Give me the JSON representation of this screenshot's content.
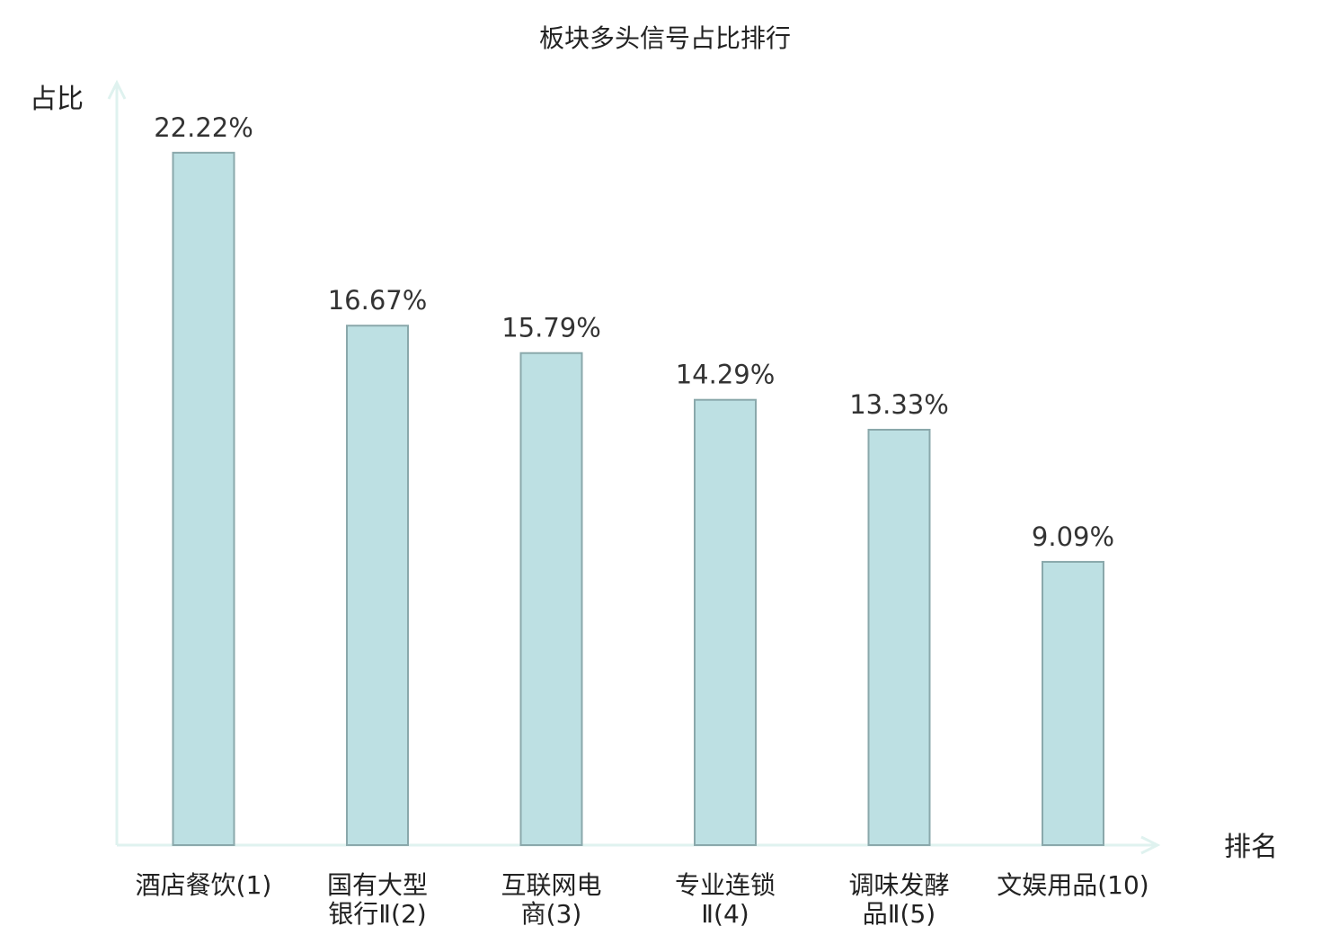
{
  "chart_data": {
    "type": "bar",
    "title": "板块多头信号占比排行",
    "xlabel": "排名",
    "ylabel": "占比",
    "ylim": [
      0,
      25
    ],
    "grid": false,
    "legend": "none",
    "categories": [
      [
        "酒店餐饮(1)"
      ],
      [
        "国有大型",
        "银行Ⅱ(2)"
      ],
      [
        "互联网电",
        "商(3)"
      ],
      [
        "专业连锁",
        "Ⅱ(4)"
      ],
      [
        "调味发酵",
        "品Ⅱ(5)"
      ],
      [
        "文娱用品(10)"
      ]
    ],
    "values": [
      22.22,
      16.67,
      15.79,
      14.29,
      13.33,
      9.09
    ],
    "value_labels": [
      "22.22%",
      "16.67%",
      "15.79%",
      "14.29%",
      "13.33%",
      "9.09%"
    ],
    "highlight_index": 5,
    "colors": {
      "bar_fill": "#bde0e3",
      "bar_stroke": "#8aa8ab",
      "axis": "#dff2ef",
      "highlight_text": "#e60000",
      "text": "#222222"
    }
  }
}
